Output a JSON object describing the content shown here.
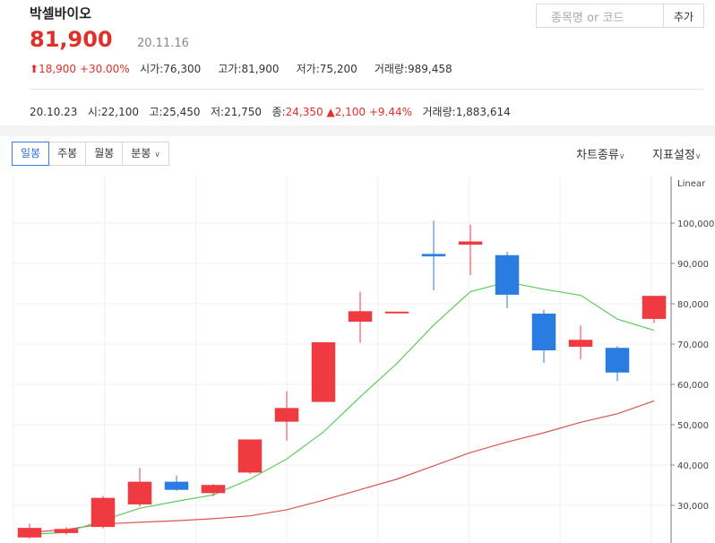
{
  "header": {
    "stock_name": "박셀바이오",
    "price": "81,900",
    "date": "20.11.16",
    "search_placeholder": "종목명 or 코드",
    "add_label": "추가"
  },
  "stats": {
    "change": "18,900",
    "change_pct": "+30.00%",
    "open_label": "시가",
    "open": "76,300",
    "high_label": "고가",
    "high": "81,900",
    "low_label": "저가",
    "low": "75,200",
    "volume_label": "거래량",
    "volume": "989,458"
  },
  "prev": {
    "date": "20.10.23",
    "open_label": "시",
    "open": "22,100",
    "high_label": "고",
    "high": "25,450",
    "low_label": "저",
    "low": "21,750",
    "close_label": "종",
    "close": "24,350",
    "change": "2,100",
    "change_pct": "+9.44%",
    "volume_label": "거래량",
    "volume": "1,883,614"
  },
  "tabs": {
    "daily": "일봉",
    "weekly": "주봉",
    "monthly": "월봉",
    "minute": "분봉"
  },
  "menu": {
    "chart_type": "차트종류",
    "indicator": "지표설정"
  },
  "chart_data": {
    "type": "candlestick",
    "scale_label": "Linear",
    "ylim": [
      20000,
      105000
    ],
    "y_ticks": [
      "100,000",
      "90,000",
      "80,000",
      "70,000",
      "60,000",
      "50,000",
      "40,000",
      "30,000",
      "20,000"
    ],
    "y_tick_values": [
      100000,
      90000,
      80000,
      70000,
      60000,
      50000,
      40000,
      30000,
      20000
    ],
    "colors": {
      "up": "#ef3a42",
      "down": "#2b7ce0",
      "ma_short": "#5ccc5c",
      "ma_long": "#d9554f"
    },
    "candles": [
      {
        "open": 22100,
        "high": 25450,
        "low": 21750,
        "close": 24350
      },
      {
        "open": 23200,
        "high": 24600,
        "low": 22700,
        "close": 24100
      },
      {
        "open": 24700,
        "high": 32300,
        "low": 24300,
        "close": 31800
      },
      {
        "open": 30300,
        "high": 39300,
        "low": 29700,
        "close": 35800
      },
      {
        "open": 35800,
        "high": 37400,
        "low": 33600,
        "close": 33900
      },
      {
        "open": 33100,
        "high": 35300,
        "low": 32300,
        "close": 35000
      },
      {
        "open": 38200,
        "high": 46300,
        "low": 37800,
        "close": 46300
      },
      {
        "open": 50800,
        "high": 58300,
        "low": 46000,
        "close": 54100
      },
      {
        "open": 55700,
        "high": 70400,
        "low": 55700,
        "close": 70400
      },
      {
        "open": 75600,
        "high": 83000,
        "low": 70300,
        "close": 78100
      },
      {
        "open": 78000,
        "high": 78000,
        "low": 78000,
        "close": 78000
      },
      {
        "open": 92300,
        "high": 100600,
        "low": 83300,
        "close": 91800
      },
      {
        "open": 94700,
        "high": 99600,
        "low": 87100,
        "close": 95400
      },
      {
        "open": 92000,
        "high": 92900,
        "low": 78900,
        "close": 82300
      },
      {
        "open": 77500,
        "high": 78500,
        "low": 65300,
        "close": 68500
      },
      {
        "open": 69400,
        "high": 74600,
        "low": 66200,
        "close": 71000
      },
      {
        "open": 69000,
        "high": 69500,
        "low": 60800,
        "close": 63000
      },
      {
        "open": 76300,
        "high": 81900,
        "low": 75200,
        "close": 81900
      }
    ],
    "ma_short": [
      22800,
      23300,
      26300,
      29300,
      31000,
      32600,
      36500,
      41500,
      48200,
      56900,
      65200,
      74700,
      83000,
      85400,
      83600,
      82100,
      76200,
      73400
    ],
    "ma_long": [
      23300,
      24000,
      25400,
      25800,
      26200,
      26700,
      27400,
      28900,
      31300,
      33900,
      36500,
      39800,
      43100,
      45700,
      48000,
      50600,
      52700,
      55900
    ]
  }
}
